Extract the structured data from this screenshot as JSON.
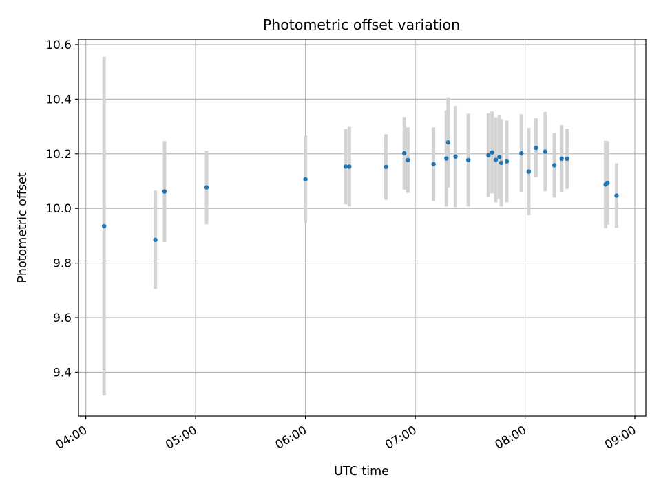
{
  "chart_data": {
    "type": "scatter",
    "title": "Photometric offset variation",
    "xlabel": "UTC time",
    "ylabel": "Photometric offset",
    "grid": true,
    "x_axis": "time-of-day",
    "xlim": [
      "03:56",
      "09:06"
    ],
    "ylim": [
      9.24,
      10.62
    ],
    "x_ticks": [
      "04:00",
      "05:00",
      "06:00",
      "07:00",
      "08:00",
      "09:00"
    ],
    "y_ticks": [
      "9.4",
      "9.6",
      "9.8",
      "10.0",
      "10.2",
      "10.4",
      "10.6"
    ],
    "colors": {
      "point": "#1f77b4",
      "errorbar": "#d3d3d3",
      "grid": "#b0b0b0",
      "axis": "#000000"
    },
    "series": [
      {
        "points": [
          {
            "x": "04:10",
            "y": 9.935,
            "err": 0.62
          },
          {
            "x": "04:38",
            "y": 9.885,
            "err": 0.18
          },
          {
            "x": "04:43",
            "y": 10.062,
            "err": 0.185
          },
          {
            "x": "05:06",
            "y": 10.077,
            "err": 0.135
          },
          {
            "x": "06:00",
            "y": 10.107,
            "err": 0.16
          },
          {
            "x": "06:22",
            "y": 10.153,
            "err": 0.138
          },
          {
            "x": "06:24",
            "y": 10.153,
            "err": 0.146
          },
          {
            "x": "06:44",
            "y": 10.152,
            "err": 0.12
          },
          {
            "x": "06:54",
            "y": 10.202,
            "err": 0.133
          },
          {
            "x": "06:56",
            "y": 10.177,
            "err": 0.12
          },
          {
            "x": "07:10",
            "y": 10.162,
            "err": 0.135
          },
          {
            "x": "07:17",
            "y": 10.183,
            "err": 0.176
          },
          {
            "x": "07:18",
            "y": 10.242,
            "err": 0.165
          },
          {
            "x": "07:22",
            "y": 10.19,
            "err": 0.185
          },
          {
            "x": "07:29",
            "y": 10.177,
            "err": 0.17
          },
          {
            "x": "07:40",
            "y": 10.195,
            "err": 0.153
          },
          {
            "x": "07:42",
            "y": 10.205,
            "err": 0.15
          },
          {
            "x": "07:44",
            "y": 10.178,
            "err": 0.156
          },
          {
            "x": "07:46",
            "y": 10.188,
            "err": 0.153
          },
          {
            "x": "07:47",
            "y": 10.167,
            "err": 0.16
          },
          {
            "x": "07:50",
            "y": 10.172,
            "err": 0.15
          },
          {
            "x": "07:58",
            "y": 10.202,
            "err": 0.143
          },
          {
            "x": "08:02",
            "y": 10.135,
            "err": 0.16
          },
          {
            "x": "08:06",
            "y": 10.222,
            "err": 0.108
          },
          {
            "x": "08:11",
            "y": 10.208,
            "err": 0.145
          },
          {
            "x": "08:16",
            "y": 10.158,
            "err": 0.118
          },
          {
            "x": "08:20",
            "y": 10.182,
            "err": 0.123
          },
          {
            "x": "08:23",
            "y": 10.182,
            "err": 0.11
          },
          {
            "x": "08:44",
            "y": 10.088,
            "err": 0.16
          },
          {
            "x": "08:45",
            "y": 10.093,
            "err": 0.153
          },
          {
            "x": "08:50",
            "y": 10.047,
            "err": 0.118
          }
        ]
      }
    ]
  }
}
